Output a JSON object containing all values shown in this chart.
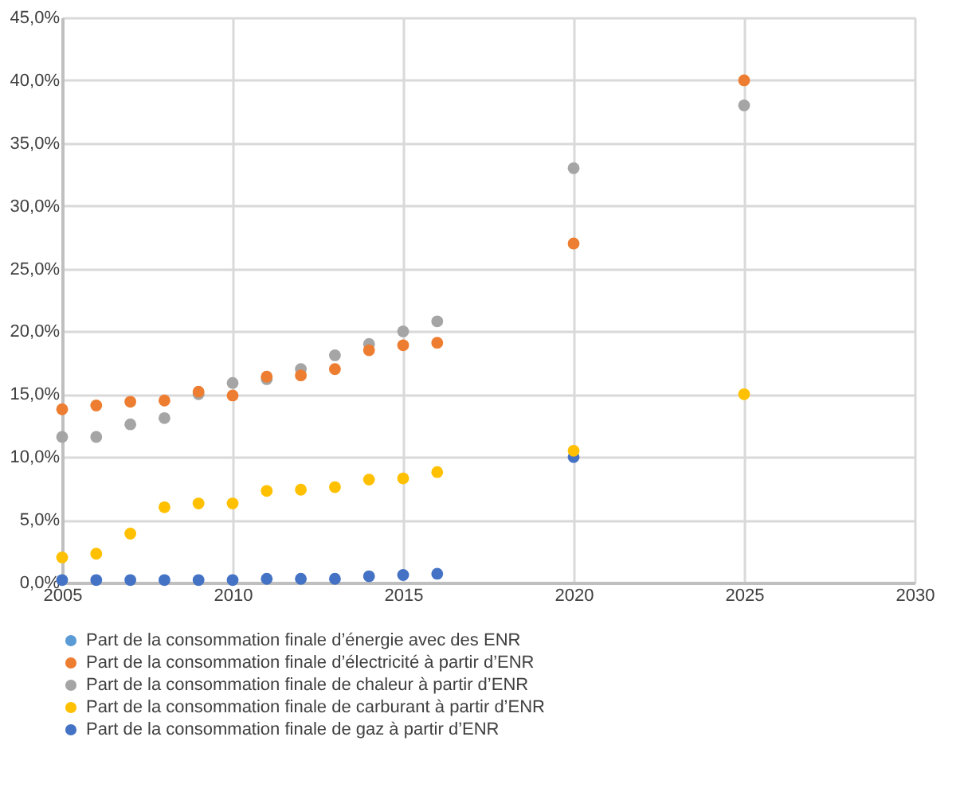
{
  "chart_data": {
    "type": "scatter",
    "x": [
      2005,
      2006,
      2007,
      2008,
      2009,
      2010,
      2011,
      2012,
      2013,
      2014,
      2015,
      2016,
      2020,
      2025
    ],
    "series": [
      {
        "name": "Part de la consommation finale d’énergie avec des ENR",
        "color": "#5b9bd5",
        "values": [
          null,
          null,
          null,
          null,
          null,
          null,
          null,
          null,
          null,
          null,
          null,
          null,
          null,
          null
        ]
      },
      {
        "name": "Part de la consommation finale d’électricité à partir d’ENR",
        "color": "#ed7d31",
        "values": [
          13.8,
          14.1,
          14.4,
          14.5,
          15.2,
          14.9,
          16.4,
          16.5,
          17.0,
          18.5,
          18.9,
          19.1,
          27.0,
          40.0
        ]
      },
      {
        "name": "Part de la consommation finale de chaleur à partir d’ENR",
        "color": "#a5a5a5",
        "values": [
          11.6,
          11.6,
          12.6,
          13.1,
          15.0,
          15.9,
          16.2,
          17.0,
          18.1,
          19.0,
          20.0,
          20.8,
          33.0,
          38.0
        ]
      },
      {
        "name": "Part de la consommation finale de carburant à partir d’ENR",
        "color": "#ffc000",
        "values": [
          2.0,
          2.3,
          3.9,
          6.0,
          6.3,
          6.3,
          7.3,
          7.4,
          7.6,
          8.2,
          8.3,
          8.8,
          10.5,
          15.0
        ]
      },
      {
        "name": "Part de la consommation finale de gaz à partir d’ENR",
        "color": "#4472c4",
        "values": [
          0.2,
          0.2,
          0.2,
          0.2,
          0.2,
          0.2,
          0.3,
          0.3,
          0.3,
          0.5,
          0.6,
          0.7,
          10.0,
          null
        ]
      }
    ],
    "xlim": [
      2005,
      2030
    ],
    "xticks": [
      2005,
      2010,
      2015,
      2020,
      2025,
      2030
    ],
    "ylim": [
      0,
      45
    ],
    "yticks": [
      {
        "value": 0,
        "label": "0,0%"
      },
      {
        "value": 5,
        "label": "5,0%"
      },
      {
        "value": 10,
        "label": "10,0%"
      },
      {
        "value": 15,
        "label": "15,0%"
      },
      {
        "value": 20,
        "label": "20,0%"
      },
      {
        "value": 25,
        "label": "25,0%"
      },
      {
        "value": 30,
        "label": "30,0%"
      },
      {
        "value": 35,
        "label": "35,0%"
      },
      {
        "value": 40,
        "label": "40,0%"
      },
      {
        "value": 45,
        "label": "45,0%"
      }
    ],
    "grid": true,
    "legend": "bottom",
    "marker": "circle"
  }
}
